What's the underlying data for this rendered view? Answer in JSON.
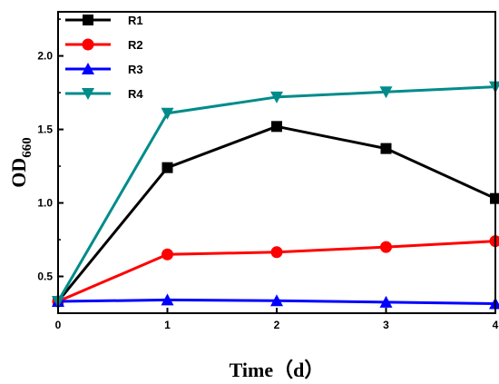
{
  "chart_data": {
    "type": "line",
    "x": [
      0,
      1,
      2,
      3,
      4
    ],
    "xlabel": "Time（d）",
    "ylabel_main": "OD",
    "ylabel_sub": "660",
    "xlim": [
      0,
      4
    ],
    "ylim": [
      0.25,
      2.3
    ],
    "xticks": [
      "0",
      "1",
      "2",
      "3",
      "4"
    ],
    "yticks": [
      "0.5",
      "1.0",
      "1.5",
      "2.0"
    ],
    "ytick_values": [
      0.5,
      1.0,
      1.5,
      2.0
    ],
    "grid": false,
    "legend_position": "top-left",
    "series": [
      {
        "name": "R1",
        "color": "#000000",
        "marker": "square",
        "values": [
          0.33,
          1.24,
          1.52,
          1.37,
          1.03
        ]
      },
      {
        "name": "R2",
        "color": "#ff0000",
        "marker": "circle",
        "values": [
          0.33,
          0.65,
          0.665,
          0.7,
          0.74
        ]
      },
      {
        "name": "R3",
        "color": "#0000ff",
        "marker": "triangle-up",
        "values": [
          0.33,
          0.34,
          0.335,
          0.325,
          0.315
        ]
      },
      {
        "name": "R4",
        "color": "#008b8b",
        "marker": "triangle-down",
        "values": [
          0.33,
          1.61,
          1.72,
          1.755,
          1.79
        ]
      }
    ]
  }
}
